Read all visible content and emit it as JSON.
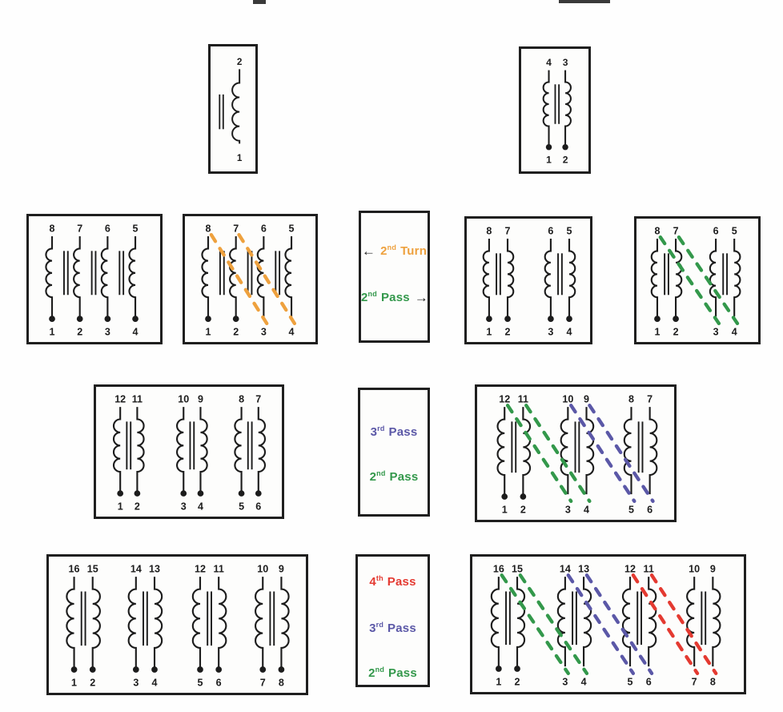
{
  "icons": {
    "arrow_left": "←",
    "arrow_right": "→"
  },
  "colors": {
    "black": "#1c1c1c",
    "orange": "#eea13e",
    "green": "#33984b",
    "blue": "#5b58a7",
    "red": "#e43a31"
  },
  "legends": {
    "row2": {
      "items": [
        {
          "num": "2",
          "sup": "nd",
          "word": "Turn",
          "color": "orange",
          "arrow": "left"
        },
        {
          "num": "2",
          "sup": "nd",
          "word": "Pass",
          "color": "green",
          "arrow": "right"
        }
      ]
    },
    "row3": {
      "items": [
        {
          "num": "3",
          "sup": "rd",
          "word": "Pass",
          "color": "blue"
        },
        {
          "num": "2",
          "sup": "nd",
          "word": "Pass",
          "color": "green"
        }
      ]
    },
    "row4": {
      "items": [
        {
          "num": "4",
          "sup": "th",
          "word": "Pass",
          "color": "red"
        },
        {
          "num": "3",
          "sup": "rd",
          "word": "Pass",
          "color": "blue"
        },
        {
          "num": "2",
          "sup": "nd",
          "word": "Pass",
          "color": "green"
        }
      ]
    }
  },
  "schematics": {
    "single_winding": {
      "top_pins": [
        "2"
      ],
      "bottom_pins": [
        "1"
      ],
      "dot_pins": [],
      "lines": []
    },
    "one_pair": {
      "top_pins": [
        "4",
        "3"
      ],
      "bottom_pins": [
        "1",
        "2"
      ],
      "dot_pins": [
        "1",
        "2"
      ],
      "lines": []
    },
    "four_windings_plain": {
      "top_pins": [
        "8",
        "7",
        "6",
        "5"
      ],
      "bottom_pins": [
        "1",
        "2",
        "3",
        "4"
      ],
      "dot_pins": [
        "1",
        "2",
        "3",
        "4"
      ],
      "lines": []
    },
    "four_windings_second_turn": {
      "top_pins": [
        "8",
        "7",
        "6",
        "5"
      ],
      "bottom_pins": [
        "1",
        "2",
        "3",
        "4"
      ],
      "dot_pins": [
        "1",
        "2"
      ],
      "lines": [
        {
          "from": "8",
          "to": "3",
          "color": "orange"
        },
        {
          "from": "7",
          "to": "4",
          "color": "orange"
        }
      ]
    },
    "two_pairs_plain": {
      "top_pins": [
        "8",
        "7",
        "6",
        "5"
      ],
      "bottom_pins": [
        "1",
        "2",
        "3",
        "4"
      ],
      "dot_pins": [
        "1",
        "2",
        "3",
        "4"
      ],
      "lines": []
    },
    "two_pairs_second_pass": {
      "top_pins": [
        "8",
        "7",
        "6",
        "5"
      ],
      "bottom_pins": [
        "1",
        "2",
        "3",
        "4"
      ],
      "dot_pins": [
        "1",
        "2"
      ],
      "lines": [
        {
          "from": "8",
          "to": "3",
          "color": "green"
        },
        {
          "from": "7",
          "to": "4",
          "color": "green"
        }
      ]
    },
    "three_pairs_plain": {
      "top_pins": [
        "12",
        "11",
        "10",
        "9",
        "8",
        "7"
      ],
      "bottom_pins": [
        "1",
        "2",
        "3",
        "4",
        "5",
        "6"
      ],
      "dot_pins": [
        "1",
        "2",
        "3",
        "4",
        "5",
        "6"
      ],
      "lines": []
    },
    "three_pairs_passes": {
      "top_pins": [
        "12",
        "11",
        "10",
        "9",
        "8",
        "7"
      ],
      "bottom_pins": [
        "1",
        "2",
        "3",
        "4",
        "5",
        "6"
      ],
      "dot_pins": [
        "1",
        "2"
      ],
      "lines": [
        {
          "from": "12",
          "to": "3",
          "color": "green"
        },
        {
          "from": "11",
          "to": "4",
          "color": "green"
        },
        {
          "from": "10",
          "to": "5",
          "color": "blue"
        },
        {
          "from": "9",
          "to": "6",
          "color": "blue"
        }
      ]
    },
    "four_pairs_plain": {
      "top_pins": [
        "16",
        "15",
        "14",
        "13",
        "12",
        "11",
        "10",
        "9"
      ],
      "bottom_pins": [
        "1",
        "2",
        "3",
        "4",
        "5",
        "6",
        "7",
        "8"
      ],
      "dot_pins": [
        "1",
        "2",
        "3",
        "4",
        "5",
        "6",
        "7",
        "8"
      ],
      "lines": []
    },
    "four_pairs_passes": {
      "top_pins": [
        "16",
        "15",
        "14",
        "13",
        "12",
        "11",
        "10",
        "9"
      ],
      "bottom_pins": [
        "1",
        "2",
        "3",
        "4",
        "5",
        "6",
        "7",
        "8"
      ],
      "dot_pins": [
        "1",
        "2"
      ],
      "lines": [
        {
          "from": "16",
          "to": "3",
          "color": "green"
        },
        {
          "from": "15",
          "to": "4",
          "color": "green"
        },
        {
          "from": "14",
          "to": "5",
          "color": "blue"
        },
        {
          "from": "13",
          "to": "6",
          "color": "blue"
        },
        {
          "from": "12",
          "to": "7",
          "color": "red"
        },
        {
          "from": "11",
          "to": "8",
          "color": "red"
        }
      ]
    }
  }
}
